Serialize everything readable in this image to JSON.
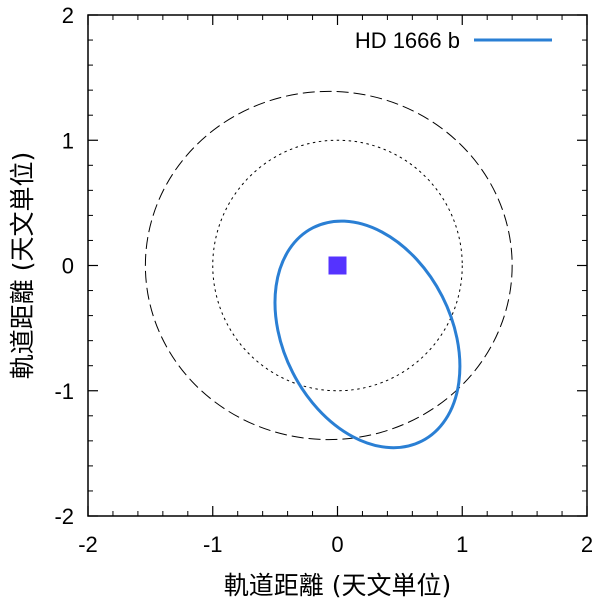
{
  "chart_data": {
    "type": "line",
    "title": "",
    "xlabel": "軌道距離 (天文単位)",
    "ylabel": "軌道距離 (天文単位)",
    "xlim": [
      -2,
      2
    ],
    "ylim": [
      -2,
      2
    ],
    "x_ticks": [
      "-2",
      "-1",
      "0",
      "1",
      "2"
    ],
    "y_ticks": [
      "-2",
      "-1",
      "0",
      "1",
      "2"
    ],
    "grid": false,
    "legend_position": "top-right",
    "star": {
      "x": 0,
      "y": 0,
      "color": "#5533ff"
    },
    "reference_orbits": [
      {
        "style": "dashed",
        "center": [
          -0.07,
          0.0
        ],
        "radius_x": 1.47,
        "radius_y": 1.39
      },
      {
        "style": "dotted",
        "center": [
          0.0,
          0.0
        ],
        "radius_x": 1.0,
        "radius_y": 1.0
      }
    ],
    "series": [
      {
        "name": "HD 1666 b",
        "color": "#2a7fd4",
        "ellipse": {
          "center": [
            0.24,
            -0.55
          ],
          "semi_major": 0.96,
          "semi_minor": 0.67,
          "rotation_deg": 63
        }
      }
    ]
  }
}
